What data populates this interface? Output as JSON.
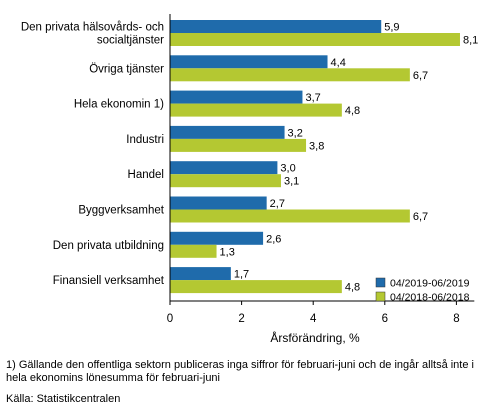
{
  "chart_data": {
    "type": "bar",
    "orientation": "horizontal",
    "categories": [
      [
        "Den privata hälsovårds- och",
        "socialtjänster"
      ],
      [
        "Övriga tjänster"
      ],
      [
        "Hela ekonomin 1)"
      ],
      [
        "Industri"
      ],
      [
        "Handel"
      ],
      [
        "Byggverksamhet"
      ],
      [
        "Den privata utbildning"
      ],
      [
        "Finansiell verksamhet"
      ]
    ],
    "series": [
      {
        "name": "04/2019-06/2019",
        "color": "#1f6bab",
        "values": [
          5.9,
          4.4,
          3.7,
          3.2,
          3.0,
          2.7,
          2.6,
          1.7
        ],
        "labels": [
          "5,9",
          "4,4",
          "3,7",
          "3,2",
          "3,0",
          "2,7",
          "2,6",
          "1,7"
        ]
      },
      {
        "name": "04/2018-06/2018",
        "color": "#b4c832",
        "values": [
          8.1,
          6.7,
          4.8,
          3.8,
          3.1,
          6.7,
          1.3,
          4.8
        ],
        "labels": [
          "8,1",
          "6,7",
          "4,8",
          "3,8",
          "3,1",
          "6,7",
          "1,3",
          "4,8"
        ]
      }
    ],
    "xlabel": "Årsförändring, %",
    "xlim": [
      0,
      8.5
    ],
    "xticks": [
      0,
      2,
      4,
      6,
      8
    ],
    "xtick_labels": [
      "0",
      "2",
      "4",
      "6",
      "8"
    ],
    "grid": false,
    "legend_position": "bottom-right"
  },
  "footnote": "1) Gällande den offentliga sektorn publiceras inga siffror för februari-juni och de ingår alltså inte i hela ekonomins lönesumma för februari-juni",
  "source": "Källa: Statistikcentralen"
}
